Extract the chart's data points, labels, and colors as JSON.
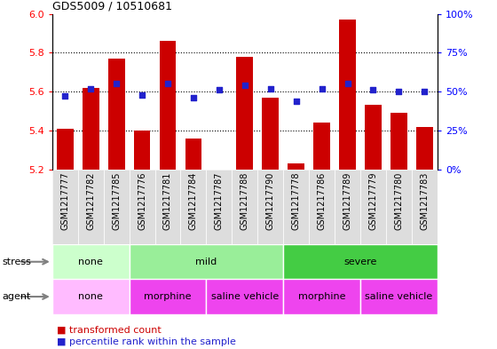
{
  "title": "GDS5009 / 10510681",
  "samples": [
    "GSM1217777",
    "GSM1217782",
    "GSM1217785",
    "GSM1217776",
    "GSM1217781",
    "GSM1217784",
    "GSM1217787",
    "GSM1217788",
    "GSM1217790",
    "GSM1217778",
    "GSM1217786",
    "GSM1217789",
    "GSM1217779",
    "GSM1217780",
    "GSM1217783"
  ],
  "transformed_count": [
    5.41,
    5.62,
    5.77,
    5.4,
    5.86,
    5.36,
    5.2,
    5.78,
    5.57,
    5.23,
    5.44,
    5.97,
    5.53,
    5.49,
    5.42
  ],
  "percentile_rank": [
    47,
    52,
    55,
    48,
    55,
    46,
    51,
    54,
    52,
    44,
    52,
    55,
    51,
    50,
    50
  ],
  "ylim": [
    5.2,
    6.0
  ],
  "yticks": [
    5.2,
    5.4,
    5.6,
    5.8,
    6.0
  ],
  "y2ticks_vals": [
    0,
    25,
    50,
    75,
    100
  ],
  "bar_color": "#cc0000",
  "dot_color": "#2222cc",
  "stress_none_color": "#ccffcc",
  "stress_mild_color": "#99ee99",
  "stress_severe_color": "#44cc44",
  "agent_none_color": "#ffbbff",
  "agent_morph_color": "#ee44ee",
  "sample_bg_color": "#dddddd",
  "stress_groups": [
    {
      "label": "none",
      "start": 0,
      "end": 3
    },
    {
      "label": "mild",
      "start": 3,
      "end": 9
    },
    {
      "label": "severe",
      "start": 9,
      "end": 15
    }
  ],
  "agent_groups": [
    {
      "label": "none",
      "start": 0,
      "end": 3
    },
    {
      "label": "morphine",
      "start": 3,
      "end": 6
    },
    {
      "label": "saline vehicle",
      "start": 6,
      "end": 9
    },
    {
      "label": "morphine",
      "start": 9,
      "end": 12
    },
    {
      "label": "saline vehicle",
      "start": 12,
      "end": 15
    }
  ],
  "legend_red": "transformed count",
  "legend_blue": "percentile rank within the sample"
}
